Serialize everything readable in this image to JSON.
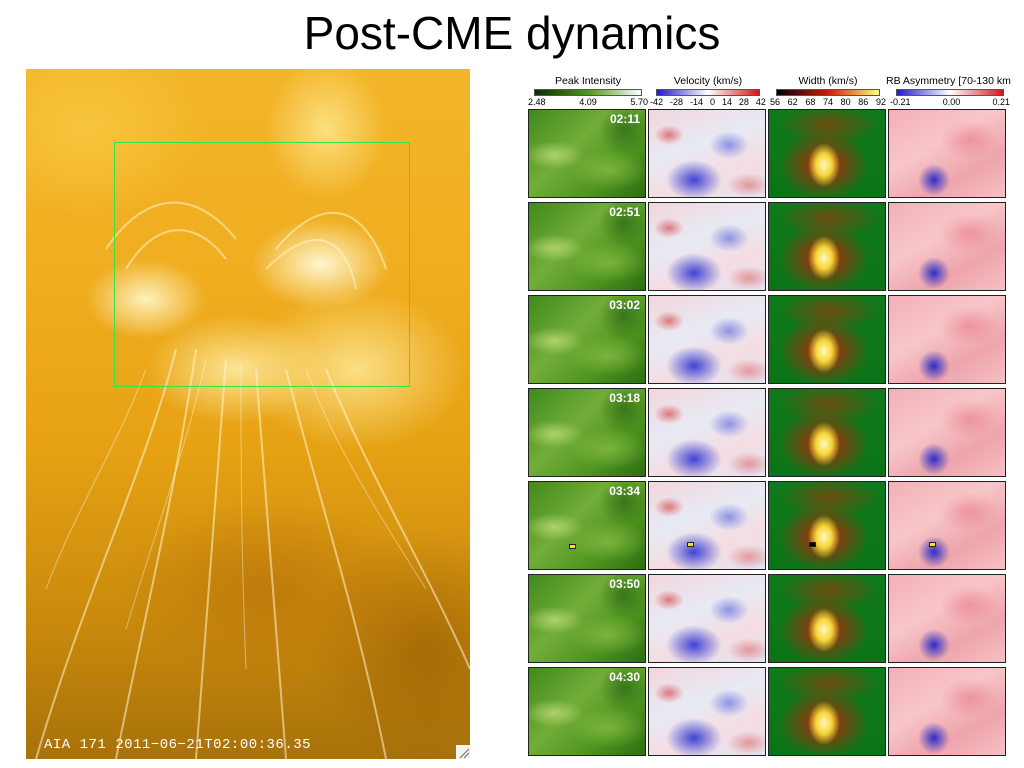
{
  "slide": {
    "title": "Post-CME dynamics"
  },
  "aia_image": {
    "caption": "AIA 171 2011−06−21T02:00:36.35",
    "box_color": "#2ee64a"
  },
  "colorbars": [
    {
      "title": "Peak Intensity",
      "ticks": [
        "2.48",
        "4.09",
        "5.70"
      ],
      "colors": [
        "#0a2a05",
        "#4f951f",
        "#ffffff"
      ]
    },
    {
      "title": "Velocity (km/s)",
      "ticks": [
        "-42",
        "-28",
        "-14",
        "0",
        "14",
        "28",
        "42"
      ],
      "colors": [
        "#1a1ac8",
        "#ffffff",
        "#d01818"
      ]
    },
    {
      "title": "Width (km/s)",
      "ticks": [
        "56",
        "62",
        "68",
        "74",
        "80",
        "86",
        "92"
      ],
      "colors": [
        "#000000",
        "#c81e0a",
        "#ffff80"
      ]
    },
    {
      "title": "RB Asymmetry [70-130 km",
      "ticks": [
        "-0.21",
        "0.00",
        "0.21"
      ],
      "colors": [
        "#1a1ac8",
        "#ffffff",
        "#d01818"
      ]
    }
  ],
  "rows": [
    {
      "time": "02:11"
    },
    {
      "time": "02:51"
    },
    {
      "time": "03:02"
    },
    {
      "time": "03:18"
    },
    {
      "time": "03:34"
    },
    {
      "time": "03:50"
    },
    {
      "time": "04:30"
    }
  ],
  "marker_color": "#f4e60a"
}
